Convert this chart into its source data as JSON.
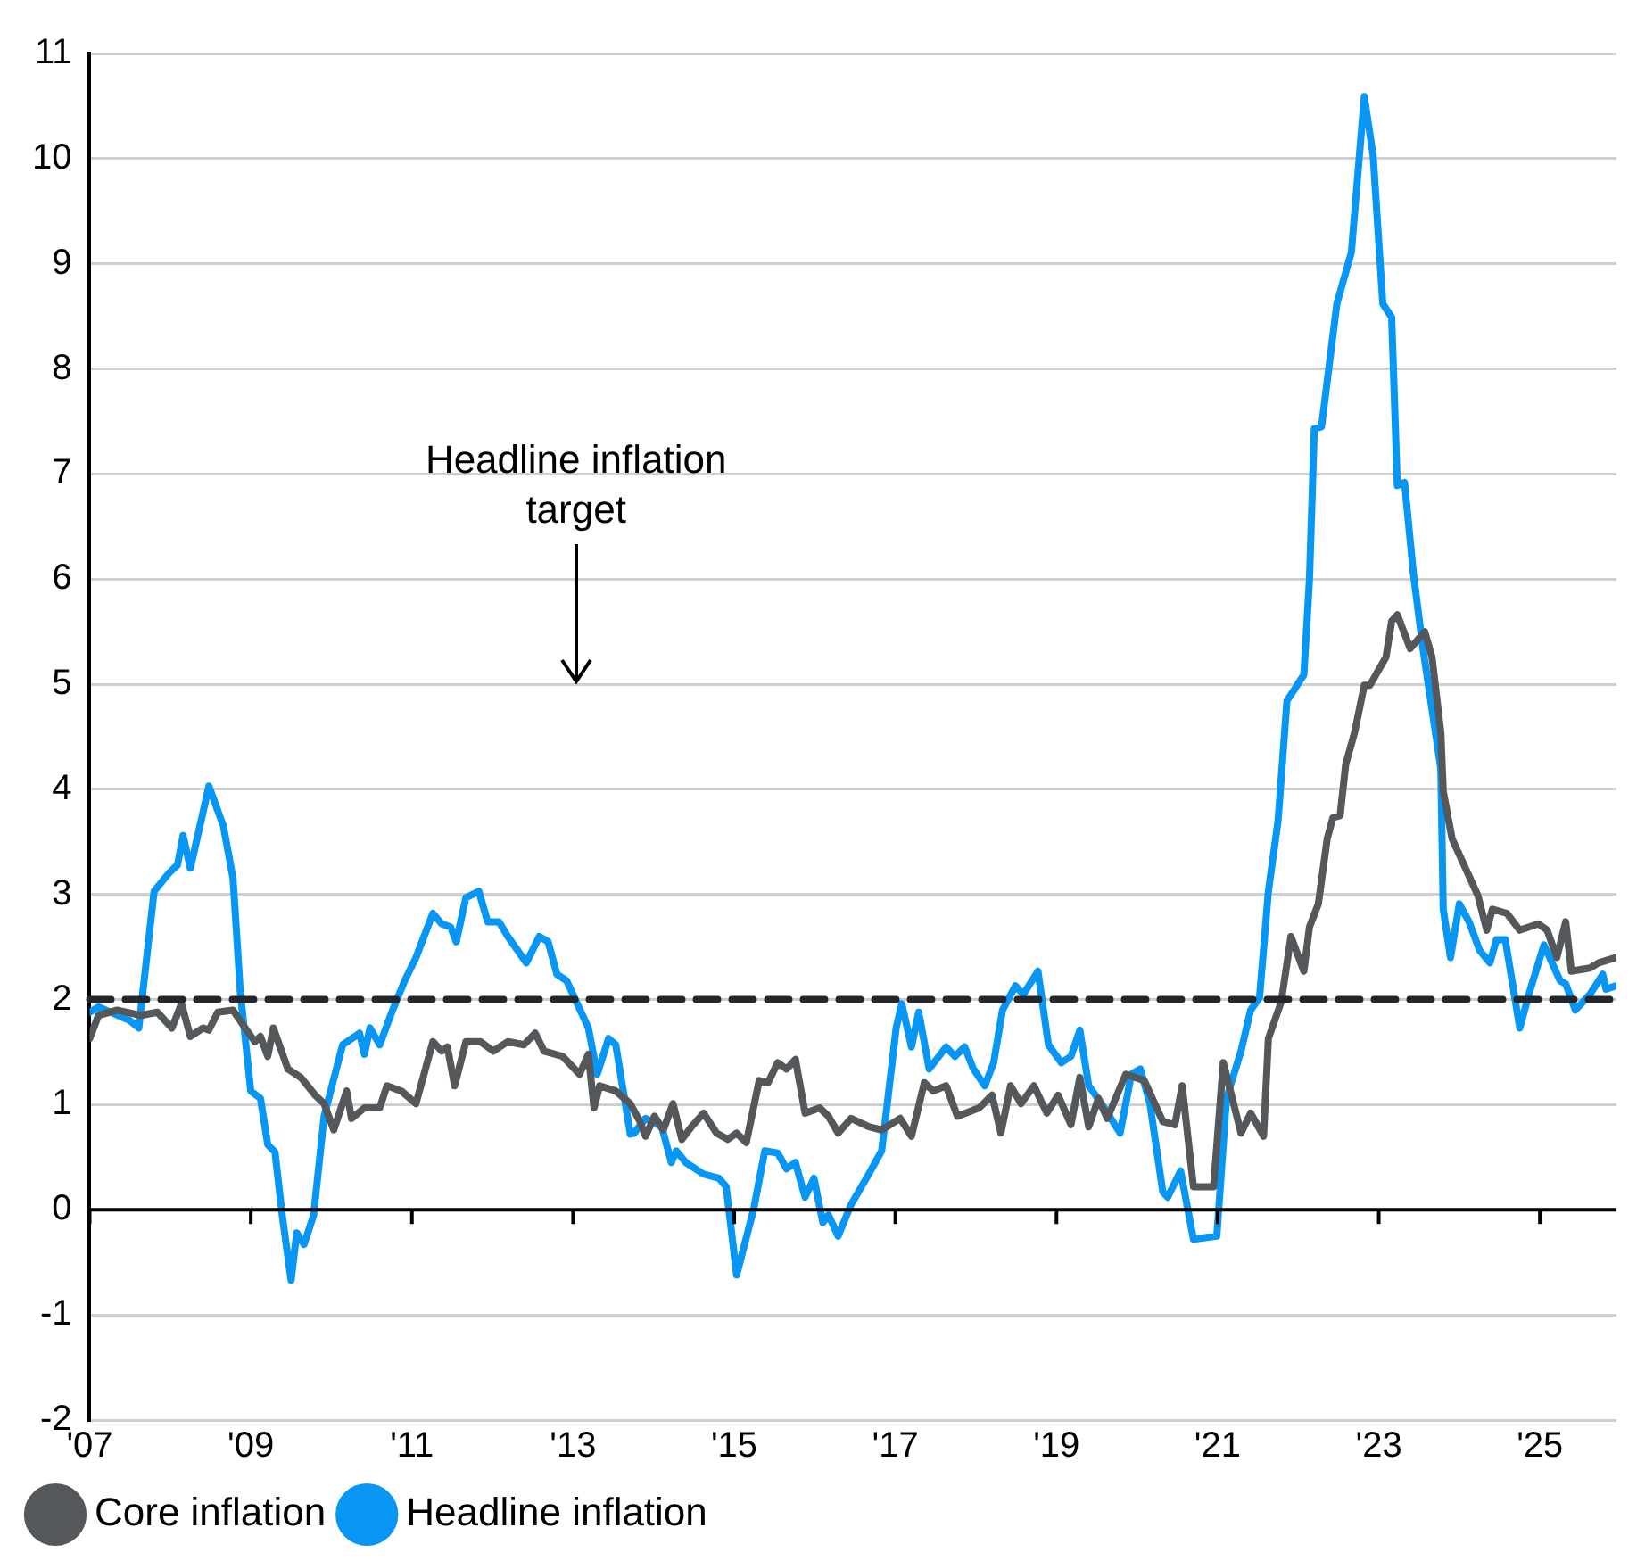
{
  "chart_data": {
    "type": "line",
    "xlim": [
      2007,
      2025.95
    ],
    "ylim": [
      -2,
      11
    ],
    "xticks": [
      {
        "value": 2007,
        "label": "'07"
      },
      {
        "value": 2009,
        "label": "'09"
      },
      {
        "value": 2011,
        "label": "'11"
      },
      {
        "value": 2013,
        "label": "'13"
      },
      {
        "value": 2015,
        "label": "'15"
      },
      {
        "value": 2017,
        "label": "'17"
      },
      {
        "value": 2019,
        "label": "'19"
      },
      {
        "value": 2021,
        "label": "'21"
      },
      {
        "value": 2023,
        "label": "'23"
      },
      {
        "value": 2025,
        "label": "'25"
      }
    ],
    "yticks": [
      -2,
      -1,
      0,
      1,
      2,
      3,
      4,
      5,
      6,
      7,
      8,
      9,
      10,
      11
    ],
    "grid": "y",
    "legend": "bottom left",
    "marker": "none",
    "line_style": "solid",
    "ref_lines": [
      {
        "axis": "y",
        "value": 2,
        "color": "#23272b",
        "line_style": "dashed"
      }
    ],
    "annotations": [
      "Headline inflation target"
    ],
    "series": [
      {
        "name": "Core inflation",
        "color": "#54585a",
        "x": [
          2007.0,
          2007.11,
          2007.34,
          2007.64,
          2007.84,
          2008.02,
          2008.14,
          2008.25,
          2008.41,
          2008.48,
          2008.59,
          2008.78,
          2008.93,
          2009.05,
          2009.12,
          2009.21,
          2009.28,
          2009.46,
          2009.62,
          2009.8,
          2009.91,
          2010.03,
          2010.19,
          2010.25,
          2010.41,
          2010.6,
          2010.69,
          2010.87,
          2011.05,
          2011.26,
          2011.37,
          2011.44,
          2011.53,
          2011.67,
          2011.85,
          2012.01,
          2012.19,
          2012.39,
          2012.53,
          2012.64,
          2012.87,
          2013.08,
          2013.19,
          2013.26,
          2013.33,
          2013.53,
          2013.71,
          2013.83,
          2013.9,
          2014.01,
          2014.12,
          2014.24,
          2014.35,
          2014.47,
          2014.62,
          2014.78,
          2014.92,
          2015.03,
          2015.15,
          2015.31,
          2015.42,
          2015.54,
          2015.65,
          2015.76,
          2015.88,
          2016.06,
          2016.17,
          2016.29,
          2016.45,
          2016.67,
          2016.83,
          2017.06,
          2017.2,
          2017.36,
          2017.47,
          2017.63,
          2017.77,
          2018.04,
          2018.2,
          2018.31,
          2018.43,
          2018.56,
          2018.72,
          2018.88,
          2019.02,
          2019.18,
          2019.29,
          2019.4,
          2019.52,
          2019.63,
          2019.86,
          2020.09,
          2020.32,
          2020.47,
          2020.56,
          2020.7,
          2020.95,
          2021.07,
          2021.29,
          2021.41,
          2021.57,
          2021.63,
          2021.79,
          2021.91,
          2022.07,
          2022.14,
          2022.25,
          2022.36,
          2022.43,
          2022.52,
          2022.59,
          2022.7,
          2022.82,
          2022.89,
          2023.09,
          2023.16,
          2023.23,
          2023.39,
          2023.57,
          2023.66,
          2023.77,
          2023.8,
          2023.91,
          2024.23,
          2024.34,
          2024.41,
          2024.59,
          2024.75,
          2024.98,
          2025.09,
          2025.21,
          2025.32,
          2025.39,
          2025.62,
          2025.73,
          2025.94
        ],
        "values": [
          1.63,
          1.85,
          1.9,
          1.85,
          1.88,
          1.73,
          1.96,
          1.65,
          1.73,
          1.71,
          1.88,
          1.9,
          1.73,
          1.6,
          1.65,
          1.46,
          1.73,
          1.34,
          1.26,
          1.09,
          1.01,
          0.76,
          1.13,
          0.87,
          0.97,
          0.97,
          1.18,
          1.13,
          1.01,
          1.6,
          1.51,
          1.55,
          1.18,
          1.6,
          1.6,
          1.51,
          1.6,
          1.57,
          1.68,
          1.51,
          1.46,
          1.29,
          1.48,
          0.97,
          1.18,
          1.13,
          1.01,
          0.84,
          0.7,
          0.89,
          0.76,
          1.01,
          0.67,
          0.79,
          0.92,
          0.73,
          0.67,
          0.73,
          0.64,
          1.23,
          1.21,
          1.4,
          1.34,
          1.43,
          0.92,
          0.97,
          0.89,
          0.73,
          0.87,
          0.79,
          0.76,
          0.87,
          0.7,
          1.21,
          1.13,
          1.18,
          0.89,
          0.97,
          1.09,
          0.73,
          1.18,
          1.01,
          1.18,
          0.92,
          1.09,
          0.81,
          1.26,
          0.79,
          1.06,
          0.87,
          1.29,
          1.23,
          0.84,
          0.81,
          1.18,
          0.22,
          0.22,
          1.4,
          0.73,
          0.92,
          0.7,
          1.63,
          1.98,
          2.6,
          2.27,
          2.69,
          2.91,
          3.53,
          3.73,
          3.75,
          4.24,
          4.54,
          4.99,
          4.99,
          5.26,
          5.6,
          5.66,
          5.34,
          5.5,
          5.26,
          4.54,
          3.98,
          3.53,
          2.99,
          2.66,
          2.86,
          2.82,
          2.66,
          2.72,
          2.66,
          2.4,
          2.74,
          2.27,
          2.3,
          2.35,
          2.4
        ]
      },
      {
        "name": "Headline inflation",
        "color": "#0896f5",
        "x": [
          2007.0,
          2007.11,
          2007.5,
          2007.61,
          2007.8,
          2007.98,
          2008.09,
          2008.16,
          2008.25,
          2008.48,
          2008.66,
          2008.78,
          2008.87,
          2009.0,
          2009.12,
          2009.21,
          2009.3,
          2009.39,
          2009.5,
          2009.57,
          2009.66,
          2009.78,
          2009.91,
          2010.14,
          2010.35,
          2010.41,
          2010.48,
          2010.6,
          2010.76,
          2010.91,
          2011.05,
          2011.26,
          2011.37,
          2011.48,
          2011.55,
          2011.67,
          2011.83,
          2011.94,
          2012.08,
          2012.19,
          2012.42,
          2012.58,
          2012.69,
          2012.8,
          2012.92,
          2013.19,
          2013.3,
          2013.44,
          2013.53,
          2013.71,
          2013.76,
          2013.9,
          2014.1,
          2014.22,
          2014.28,
          2014.4,
          2014.62,
          2014.81,
          2014.9,
          2015.03,
          2015.24,
          2015.38,
          2015.54,
          2015.65,
          2015.76,
          2015.88,
          2015.99,
          2016.1,
          2016.17,
          2016.29,
          2016.45,
          2016.67,
          2016.83,
          2016.9,
          2017.01,
          2017.08,
          2017.2,
          2017.29,
          2017.42,
          2017.63,
          2017.74,
          2017.86,
          2017.97,
          2018.11,
          2018.22,
          2018.33,
          2018.49,
          2018.59,
          2018.77,
          2018.9,
          2019.06,
          2019.18,
          2019.29,
          2019.4,
          2019.56,
          2019.79,
          2019.93,
          2020.04,
          2020.16,
          2020.32,
          2020.38,
          2020.54,
          2020.7,
          2020.99,
          2021.11,
          2021.29,
          2021.41,
          2021.52,
          2021.63,
          2021.75,
          2021.86,
          2022.07,
          2022.14,
          2022.2,
          2022.29,
          2022.48,
          2022.66,
          2022.82,
          2022.93,
          2023.05,
          2023.16,
          2023.23,
          2023.32,
          2023.43,
          2023.55,
          2023.77,
          2023.8,
          2023.89,
          2024.0,
          2024.12,
          2024.25,
          2024.38,
          2024.46,
          2024.57,
          2024.75,
          2024.87,
          2025.05,
          2025.25,
          2025.32,
          2025.44,
          2025.62,
          2025.78,
          2025.82,
          2025.94
        ],
        "values": [
          1.88,
          1.93,
          1.8,
          1.73,
          3.03,
          3.2,
          3.28,
          3.56,
          3.25,
          4.03,
          3.65,
          3.15,
          2.07,
          1.13,
          1.06,
          0.62,
          0.55,
          -0.05,
          -0.67,
          -0.22,
          -0.33,
          -0.05,
          0.89,
          1.57,
          1.68,
          1.48,
          1.73,
          1.57,
          1.9,
          2.18,
          2.4,
          2.82,
          2.72,
          2.69,
          2.55,
          2.97,
          3.03,
          2.74,
          2.74,
          2.6,
          2.35,
          2.6,
          2.55,
          2.24,
          2.18,
          1.73,
          1.29,
          1.63,
          1.57,
          0.72,
          0.73,
          0.87,
          0.79,
          0.45,
          0.56,
          0.45,
          0.34,
          0.3,
          0.22,
          -0.62,
          0,
          0.56,
          0.54,
          0.39,
          0.45,
          0.12,
          0.3,
          -0.12,
          -0.05,
          -0.25,
          0.05,
          0.34,
          0.56,
          1.01,
          1.73,
          1.96,
          1.55,
          1.88,
          1.34,
          1.55,
          1.46,
          1.55,
          1.34,
          1.18,
          1.4,
          1.9,
          2.13,
          2.05,
          2.27,
          1.57,
          1.4,
          1.46,
          1.71,
          1.18,
          1.01,
          0.73,
          1.29,
          1.34,
          1.01,
          0.17,
          0.12,
          0.37,
          -0.28,
          -0.25,
          1.06,
          1.51,
          1.9,
          2.02,
          3.03,
          3.7,
          4.84,
          5.09,
          6.0,
          7.43,
          7.45,
          8.62,
          9.11,
          10.59,
          10.03,
          8.62,
          8.49,
          6.89,
          6.92,
          6.05,
          5.33,
          4.2,
          2.86,
          2.4,
          2.91,
          2.74,
          2.47,
          2.35,
          2.57,
          2.57,
          1.73,
          2.07,
          2.52,
          2.18,
          2.15,
          1.9,
          2.05,
          2.24,
          2.1,
          2.13
        ]
      }
    ]
  }
}
